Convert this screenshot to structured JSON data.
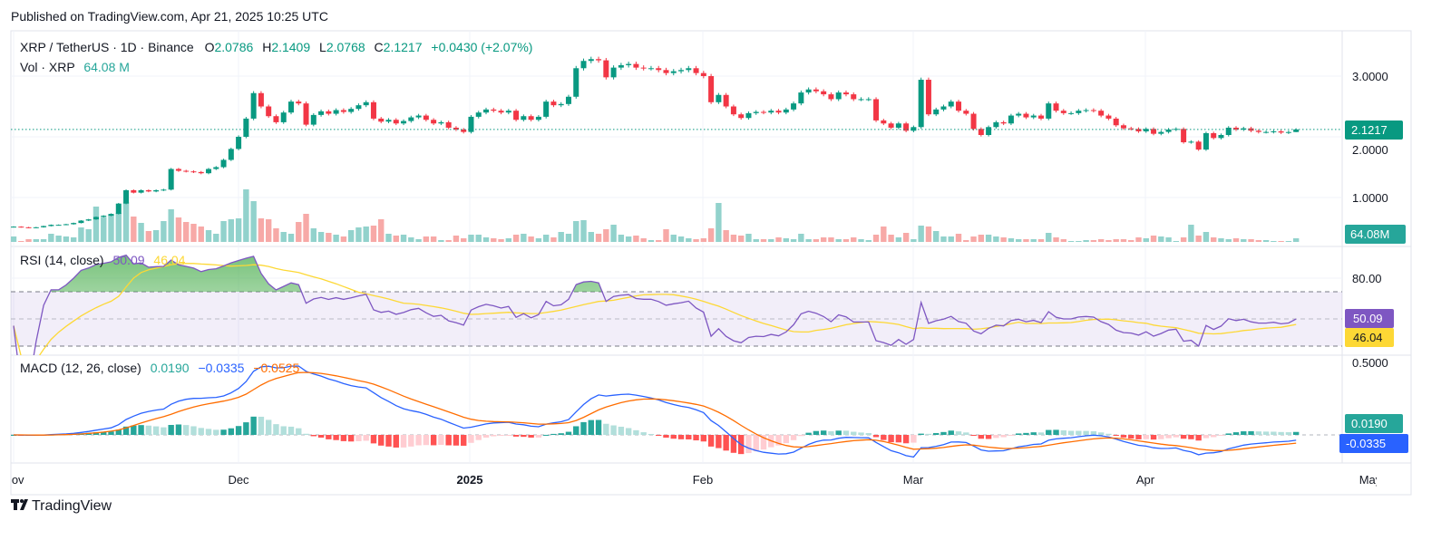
{
  "published": "Published on TradingView.com, Apr 21, 2025 10:25 UTC",
  "header": {
    "symbol": "XRP / TetherUS · 1D · Binance",
    "o_label": "O",
    "o": "2.0786",
    "h_label": "H",
    "h": "2.1409",
    "l_label": "L",
    "l": "2.0768",
    "c_label": "C",
    "c": "2.1217",
    "change": "+0.0430 (+2.07%)",
    "vol_label": "Vol · XRP",
    "vol": "64.08 M"
  },
  "rsi_legend": {
    "title": "RSI (14, close)",
    "rsi": "50.09",
    "ma": "46.04"
  },
  "macd_legend": {
    "title": "MACD (12, 26, close)",
    "hist": "0.0190",
    "macd": "−0.0335",
    "signal": "−0.0525"
  },
  "price_axis": {
    "labels": [
      "3.0000",
      "2.0000",
      "1.0000"
    ],
    "last_price": "2.1217",
    "volume_tag": "64.08M",
    "rsi_level": "80.00",
    "rsi_tag": "50.09",
    "rsi_ma_tag": "46.04",
    "macd_axis": "0.5000",
    "hist_tag": "0.0190",
    "macd_tag": "-0.0335"
  },
  "time_axis": [
    "Nov",
    "Dec",
    "2025",
    "Feb",
    "Mar",
    "Apr",
    "May"
  ],
  "logo": "TradingView",
  "colors": {
    "up": "#089981",
    "down": "#f23645",
    "rsi": "#7e57c2",
    "rsi_ma": "#fdd835",
    "macd": "#2962ff",
    "signal": "#ff6d00"
  },
  "chart_data": {
    "type": "candlestick",
    "interval": "1D",
    "start_date": "2024-11-01",
    "end_date": "2025-04-21",
    "y_scale": "linear",
    "ylim": [
      0.5,
      3.5
    ],
    "last_bar": {
      "open": 2.0786,
      "high": 2.1409,
      "low": 2.0768,
      "close": 2.1217
    },
    "close": [
      0.52,
      0.51,
      0.5,
      0.51,
      0.53,
      0.55,
      0.55,
      0.56,
      0.58,
      0.62,
      0.64,
      0.68,
      0.7,
      0.73,
      0.9,
      1.12,
      1.08,
      1.12,
      1.1,
      1.12,
      1.13,
      1.47,
      1.44,
      1.43,
      1.42,
      1.4,
      1.47,
      1.5,
      1.62,
      1.8,
      2.0,
      2.3,
      2.72,
      2.5,
      2.34,
      2.24,
      2.4,
      2.58,
      2.55,
      2.2,
      2.36,
      2.42,
      2.38,
      2.44,
      2.41,
      2.46,
      2.52,
      2.57,
      2.3,
      2.25,
      2.28,
      2.22,
      2.26,
      2.32,
      2.35,
      2.28,
      2.22,
      2.24,
      2.15,
      2.12,
      2.08,
      2.33,
      2.4,
      2.45,
      2.43,
      2.4,
      2.43,
      2.28,
      2.34,
      2.28,
      2.33,
      2.58,
      2.52,
      2.54,
      2.66,
      3.13,
      3.25,
      3.28,
      3.26,
      2.98,
      3.14,
      3.18,
      3.2,
      3.14,
      3.13,
      3.13,
      3.1,
      3.05,
      3.08,
      3.1,
      3.13,
      3.05,
      3.0,
      2.57,
      2.69,
      2.5,
      2.37,
      2.31,
      2.39,
      2.41,
      2.4,
      2.43,
      2.4,
      2.45,
      2.55,
      2.73,
      2.78,
      2.75,
      2.7,
      2.62,
      2.73,
      2.7,
      2.62,
      2.62,
      2.62,
      2.27,
      2.22,
      2.15,
      2.22,
      2.1,
      2.16,
      2.94,
      2.37,
      2.45,
      2.5,
      2.58,
      2.43,
      2.38,
      2.13,
      2.03,
      2.16,
      2.24,
      2.22,
      2.35,
      2.38,
      2.32,
      2.35,
      2.3,
      2.55,
      2.43,
      2.39,
      2.39,
      2.43,
      2.44,
      2.43,
      2.35,
      2.3,
      2.19,
      2.14,
      2.13,
      2.09,
      2.13,
      2.05,
      2.08,
      2.12,
      2.13,
      1.91,
      1.92,
      1.79,
      2.06,
      1.98,
      2.03,
      2.15,
      2.12,
      2.14,
      2.1,
      2.08,
      2.08,
      2.09,
      2.07,
      2.0786,
      2.1217
    ],
    "volume_millions": [
      96,
      16,
      48,
      48,
      48,
      144,
      112,
      96,
      80,
      256,
      224,
      624,
      432,
      480,
      512,
      704,
      448,
      336,
      192,
      208,
      368,
      576,
      432,
      352,
      320,
      272,
      208,
      144,
      368,
      400,
      416,
      928,
      720,
      416,
      400,
      240,
      176,
      144,
      352,
      496,
      240,
      176,
      160,
      128,
      96,
      208,
      256,
      272,
      288,
      400,
      144,
      112,
      128,
      80,
      48,
      96,
      96,
      32,
      32,
      112,
      64,
      128,
      128,
      80,
      64,
      48,
      64,
      128,
      144,
      96,
      64,
      128,
      80,
      176,
      144,
      368,
      384,
      176,
      144,
      224,
      304,
      128,
      96,
      112,
      64,
      32,
      32,
      224,
      128,
      96,
      64,
      48,
      64,
      240,
      688,
      208,
      128,
      112,
      144,
      48,
      48,
      48,
      80,
      64,
      48,
      144,
      48,
      48,
      80,
      80,
      48,
      48,
      80,
      48,
      32,
      128,
      272,
      128,
      80,
      160,
      48,
      288,
      272,
      192,
      96,
      96,
      144,
      32,
      96,
      128,
      128,
      96,
      80,
      64,
      48,
      48,
      48,
      48,
      160,
      80,
      48,
      16,
      16,
      32,
      32,
      48,
      32,
      48,
      48,
      32,
      80,
      64,
      112,
      96,
      80,
      16,
      80,
      304,
      112,
      176,
      80,
      64,
      48,
      64,
      48,
      48,
      32,
      32,
      16,
      16,
      16,
      64.08
    ],
    "rsi": {
      "period": 14,
      "ma_period": 14,
      "levels": [
        70,
        50,
        30
      ],
      "last": 50.09,
      "ma_last": 46.04
    },
    "macd": {
      "fast": 12,
      "slow": 26,
      "signal": 9,
      "hist_last": 0.019,
      "macd_last": -0.0335,
      "signal_last": -0.0525
    }
  }
}
